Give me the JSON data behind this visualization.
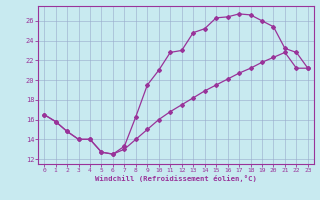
{
  "xlabel": "Windchill (Refroidissement éolien,°C)",
  "bg_color": "#c8eaf0",
  "line_color": "#993399",
  "grid_color": "#99aacc",
  "curve1_x": [
    0,
    1,
    2,
    3,
    4,
    5,
    6,
    7,
    8,
    9,
    10,
    11,
    12,
    13,
    14,
    15,
    16,
    17,
    18,
    19,
    20,
    21,
    22,
    23
  ],
  "curve1_y": [
    16.5,
    15.8,
    14.8,
    14.0,
    14.0,
    12.7,
    12.5,
    13.3,
    16.3,
    19.5,
    21.0,
    22.8,
    23.0,
    24.8,
    25.2,
    26.3,
    26.4,
    26.7,
    26.6,
    26.0,
    25.4,
    23.2,
    22.8,
    21.2
  ],
  "curve2_x": [
    0,
    1,
    2,
    3,
    4,
    5,
    6,
    7,
    8,
    9,
    10,
    11,
    12,
    13,
    14,
    15,
    16,
    17,
    18,
    19,
    20,
    21,
    22,
    23
  ],
  "curve2_y": [
    16.5,
    15.8,
    14.8,
    14.0,
    14.0,
    12.7,
    12.5,
    13.0,
    14.0,
    15.0,
    16.0,
    16.8,
    17.5,
    18.2,
    18.9,
    19.5,
    20.1,
    20.7,
    21.2,
    21.8,
    22.3,
    22.8,
    21.2,
    21.2
  ],
  "xlim": [
    -0.5,
    23.5
  ],
  "ylim": [
    11.5,
    27.5
  ],
  "yticks": [
    12,
    14,
    16,
    18,
    20,
    22,
    24,
    26
  ],
  "xticks": [
    0,
    1,
    2,
    3,
    4,
    5,
    6,
    7,
    8,
    9,
    10,
    11,
    12,
    13,
    14,
    15,
    16,
    17,
    18,
    19,
    20,
    21,
    22,
    23
  ]
}
